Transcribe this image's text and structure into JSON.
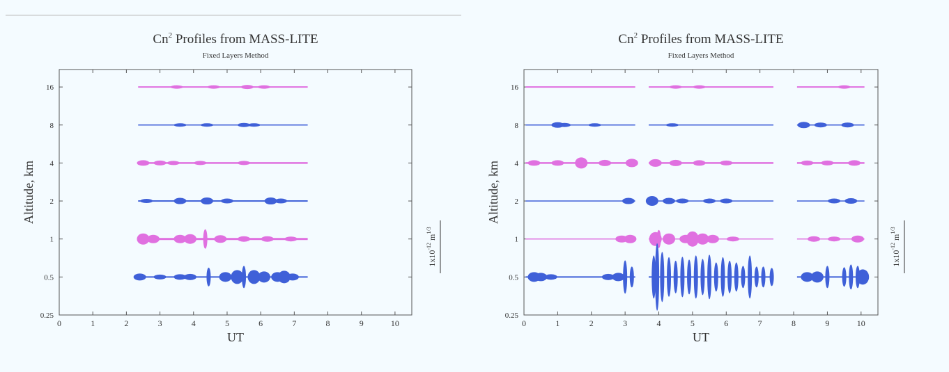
{
  "background_color": "#f4fbff",
  "colors": {
    "magenta": "#e070e0",
    "blue": "#3f60d8",
    "axis": "#555555"
  },
  "chart_data": [
    {
      "type": "scatter",
      "title": "Cn",
      "title_sup": "2",
      "title_rest": " Profiles from MASS-LITE",
      "subtitle": "Fixed Layers Method",
      "xlabel": "UT",
      "ylabel": "Altitude, km",
      "scale_label": "1x10",
      "scale_sup": "-12",
      "scale_unit": " m",
      "scale_unit_sup": "1/3",
      "xlim": [
        0,
        10.5
      ],
      "xticks": [
        0,
        1,
        2,
        3,
        4,
        5,
        6,
        7,
        8,
        9,
        10
      ],
      "yscale": "log2",
      "ylim": [
        0.25,
        22
      ],
      "yticks": [
        0.25,
        0.5,
        1,
        2,
        4,
        8,
        16
      ],
      "ytick_labels": [
        "0.25",
        "0.5",
        "1",
        "2",
        "4",
        "8",
        "16"
      ],
      "series": [
        {
          "altitude": 16,
          "color": "magenta",
          "segments": [
            [
              2.35,
              7.4
            ]
          ],
          "width": 2,
          "bursts": [
            [
              3.5,
              3
            ],
            [
              4.6,
              3
            ],
            [
              5.6,
              4
            ],
            [
              6.1,
              3
            ]
          ]
        },
        {
          "altitude": 8,
          "color": "blue",
          "segments": [
            [
              2.35,
              7.4
            ]
          ],
          "width": 1.5,
          "bursts": [
            [
              3.6,
              3
            ],
            [
              4.4,
              3
            ],
            [
              5.5,
              4
            ],
            [
              5.8,
              3
            ]
          ]
        },
        {
          "altitude": 4,
          "color": "magenta",
          "segments": [
            [
              2.35,
              7.4
            ]
          ],
          "width": 2.5,
          "bursts": [
            [
              2.5,
              6
            ],
            [
              3.0,
              5
            ],
            [
              3.4,
              4
            ],
            [
              4.2,
              4
            ],
            [
              5.5,
              4
            ]
          ]
        },
        {
          "altitude": 2,
          "color": "blue",
          "segments": [
            [
              2.35,
              7.4
            ]
          ],
          "width": 2,
          "bursts": [
            [
              2.6,
              4
            ],
            [
              3.6,
              7
            ],
            [
              4.4,
              8
            ],
            [
              5.0,
              5
            ],
            [
              6.3,
              8
            ],
            [
              6.6,
              5
            ]
          ]
        },
        {
          "altitude": 1,
          "color": "magenta",
          "segments": [
            [
              2.35,
              7.4
            ]
          ],
          "width": 3,
          "bursts": [
            [
              2.5,
              14
            ],
            [
              2.8,
              10
            ],
            [
              3.6,
              10
            ],
            [
              3.9,
              12
            ],
            [
              4.35,
              26
            ],
            [
              4.8,
              9
            ],
            [
              5.5,
              6
            ],
            [
              6.2,
              6
            ],
            [
              6.9,
              5
            ]
          ]
        },
        {
          "altitude": 0.5,
          "color": "blue",
          "segments": [
            [
              2.35,
              7.4
            ]
          ],
          "width": 2,
          "bursts": [
            [
              2.4,
              8
            ],
            [
              3.0,
              5
            ],
            [
              3.6,
              6
            ],
            [
              3.9,
              7
            ],
            [
              4.45,
              25
            ],
            [
              4.95,
              12
            ],
            [
              5.3,
              18
            ],
            [
              5.5,
              30
            ],
            [
              5.8,
              18
            ],
            [
              6.1,
              14
            ],
            [
              6.5,
              12
            ],
            [
              6.7,
              16
            ],
            [
              6.95,
              8
            ]
          ]
        }
      ]
    },
    {
      "type": "scatter",
      "title": "Cn",
      "title_sup": "2",
      "title_rest": " Profiles from MASS-LITE",
      "subtitle": "Fixed Layers Method",
      "xlabel": "UT",
      "ylabel": "Altitude, km",
      "scale_label": "1x10",
      "scale_sup": "-12",
      "scale_unit": " m",
      "scale_unit_sup": "1/3",
      "xlim": [
        0,
        10.5
      ],
      "xticks": [
        0,
        1,
        2,
        3,
        4,
        5,
        6,
        7,
        8,
        9,
        10
      ],
      "yscale": "log2",
      "ylim": [
        0.25,
        22
      ],
      "yticks": [
        0.25,
        0.5,
        1,
        2,
        4,
        8,
        16
      ],
      "ytick_labels": [
        "0.25",
        "0.5",
        "1",
        "2",
        "4",
        "8",
        "16"
      ],
      "series": [
        {
          "altitude": 16,
          "color": "magenta",
          "segments": [
            [
              0.05,
              3.3
            ],
            [
              3.7,
              7.4
            ],
            [
              8.1,
              10.1
            ]
          ],
          "width": 2,
          "bursts": [
            [
              4.5,
              3
            ],
            [
              5.2,
              3
            ],
            [
              9.5,
              3
            ]
          ]
        },
        {
          "altitude": 8,
          "color": "blue",
          "segments": [
            [
              0.05,
              3.3
            ],
            [
              3.7,
              7.4
            ],
            [
              8.1,
              10.1
            ]
          ],
          "width": 1.5,
          "bursts": [
            [
              1.0,
              6
            ],
            [
              1.2,
              4
            ],
            [
              2.1,
              3
            ],
            [
              4.4,
              3
            ],
            [
              8.3,
              7
            ],
            [
              8.8,
              5
            ],
            [
              9.6,
              5
            ]
          ]
        },
        {
          "altitude": 4,
          "color": "magenta",
          "segments": [
            [
              0.05,
              3.3
            ],
            [
              3.7,
              7.4
            ],
            [
              8.1,
              10.1
            ]
          ],
          "width": 2.5,
          "bursts": [
            [
              0.3,
              6
            ],
            [
              1.0,
              6
            ],
            [
              1.7,
              14
            ],
            [
              2.4,
              7
            ],
            [
              3.2,
              10
            ],
            [
              3.9,
              9
            ],
            [
              4.5,
              7
            ],
            [
              5.2,
              6
            ],
            [
              6.0,
              5
            ],
            [
              8.4,
              5
            ],
            [
              9.0,
              5
            ],
            [
              9.8,
              6
            ]
          ]
        },
        {
          "altitude": 2,
          "color": "blue",
          "segments": [
            [
              0.05,
              3.3
            ],
            [
              3.7,
              7.4
            ],
            [
              8.1,
              10.1
            ]
          ],
          "width": 1.5,
          "bursts": [
            [
              3.1,
              7
            ],
            [
              3.8,
              12
            ],
            [
              4.3,
              7
            ],
            [
              4.7,
              5
            ],
            [
              5.5,
              5
            ],
            [
              6.0,
              5
            ],
            [
              9.2,
              5
            ],
            [
              9.7,
              6
            ]
          ]
        },
        {
          "altitude": 1,
          "color": "magenta",
          "segments": [
            [
              0.05,
              3.3
            ],
            [
              3.7,
              7.4
            ],
            [
              8.1,
              10.1
            ]
          ],
          "width": 1.5,
          "bursts": [
            [
              2.9,
              8
            ],
            [
              3.15,
              10
            ],
            [
              3.9,
              18
            ],
            [
              4.0,
              24
            ],
            [
              4.3,
              14
            ],
            [
              4.8,
              10
            ],
            [
              5.0,
              20
            ],
            [
              5.3,
              14
            ],
            [
              5.6,
              10
            ],
            [
              6.2,
              5
            ],
            [
              8.6,
              6
            ],
            [
              9.2,
              5
            ],
            [
              9.9,
              8
            ]
          ]
        },
        {
          "altitude": 0.5,
          "color": "blue",
          "segments": [
            [
              0.05,
              3.3
            ],
            [
              3.7,
              7.4
            ],
            [
              8.1,
              10.1
            ]
          ],
          "width": 2,
          "bursts": [
            [
              0.3,
              12
            ],
            [
              0.5,
              10
            ],
            [
              0.8,
              6
            ],
            [
              2.5,
              7
            ],
            [
              2.8,
              10
            ],
            [
              3.0,
              46
            ],
            [
              3.2,
              28
            ],
            [
              3.85,
              60
            ],
            [
              3.95,
              95
            ],
            [
              4.1,
              70
            ],
            [
              4.3,
              55
            ],
            [
              4.5,
              45
            ],
            [
              4.7,
              56
            ],
            [
              4.9,
              48
            ],
            [
              5.1,
              60
            ],
            [
              5.3,
              50
            ],
            [
              5.5,
              62
            ],
            [
              5.7,
              40
            ],
            [
              5.9,
              55
            ],
            [
              6.1,
              45
            ],
            [
              6.3,
              40
            ],
            [
              6.5,
              30
            ],
            [
              6.7,
              60
            ],
            [
              6.9,
              28
            ],
            [
              7.1,
              28
            ],
            [
              7.35,
              24
            ],
            [
              8.4,
              12
            ],
            [
              8.7,
              14
            ],
            [
              9.0,
              30
            ],
            [
              9.5,
              26
            ],
            [
              9.7,
              34
            ],
            [
              9.9,
              30
            ],
            [
              10.05,
              20
            ]
          ]
        }
      ]
    }
  ]
}
